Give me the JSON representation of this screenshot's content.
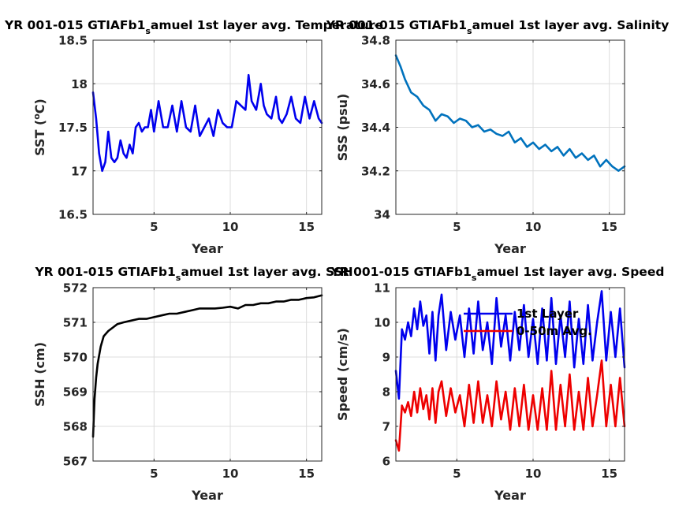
{
  "chart_data": [
    {
      "type": "line",
      "title": "YR 001-015 GTIAFb1_samuel 1st layer avg. Temperature",
      "title_parts": [
        "YR 001-015 GTIAFb1",
        "s",
        "amuel 1st layer avg. Temperature"
      ],
      "xlabel": "Year",
      "ylabel": "SST (",
      "ylabel_sup": "o",
      "ylabel_end": "C)",
      "xlim": [
        1,
        16
      ],
      "ylim": [
        16.5,
        18.5
      ],
      "xticks": [
        5,
        10,
        15
      ],
      "yticks": [
        16.5,
        17,
        17.5,
        18,
        18.5
      ],
      "ytick_labels": [
        "16.5",
        "17",
        "17.5",
        "18",
        "18.5"
      ],
      "grid": true,
      "series": [
        {
          "color": "#0000ee",
          "x": [
            1.0,
            1.2,
            1.4,
            1.6,
            1.8,
            2.0,
            2.2,
            2.4,
            2.6,
            2.8,
            3.0,
            3.2,
            3.4,
            3.6,
            3.8,
            4.0,
            4.2,
            4.4,
            4.6,
            4.8,
            5.0,
            5.3,
            5.6,
            5.9,
            6.2,
            6.5,
            6.8,
            7.1,
            7.4,
            7.7,
            8.0,
            8.3,
            8.6,
            8.9,
            9.2,
            9.5,
            9.8,
            10.1,
            10.4,
            10.7,
            11.0,
            11.2,
            11.4,
            11.7,
            12.0,
            12.2,
            12.4,
            12.7,
            13.0,
            13.2,
            13.4,
            13.7,
            14.0,
            14.3,
            14.6,
            14.9,
            15.2,
            15.5,
            15.8,
            16.0
          ],
          "values": [
            17.9,
            17.6,
            17.2,
            17.0,
            17.1,
            17.45,
            17.15,
            17.1,
            17.15,
            17.35,
            17.2,
            17.15,
            17.3,
            17.2,
            17.5,
            17.55,
            17.45,
            17.5,
            17.5,
            17.7,
            17.45,
            17.8,
            17.5,
            17.5,
            17.75,
            17.45,
            17.8,
            17.5,
            17.45,
            17.75,
            17.4,
            17.5,
            17.6,
            17.4,
            17.7,
            17.55,
            17.5,
            17.5,
            17.8,
            17.75,
            17.7,
            18.1,
            17.8,
            17.7,
            18.0,
            17.75,
            17.65,
            17.6,
            17.85,
            17.6,
            17.55,
            17.65,
            17.85,
            17.6,
            17.55,
            17.85,
            17.6,
            17.8,
            17.6,
            17.55
          ]
        }
      ]
    },
    {
      "type": "line",
      "title": "YR 001-015 GTIAFb1_samuel 1st layer avg. Salinity",
      "title_parts": [
        "YR 001-015 GTIAFb1",
        "s",
        "amuel 1st layer avg. Salinity"
      ],
      "xlabel": "Year",
      "ylabel": "SSS (psu)",
      "xlim": [
        1,
        16
      ],
      "ylim": [
        34,
        34.8
      ],
      "xticks": [
        5,
        10,
        15
      ],
      "yticks": [
        34,
        34.2,
        34.4,
        34.6,
        34.8
      ],
      "ytick_labels": [
        "34",
        "34.2",
        "34.4",
        "34.6",
        "34.8"
      ],
      "grid": true,
      "series": [
        {
          "color": "#0072bd",
          "x": [
            1.0,
            1.3,
            1.6,
            2.0,
            2.4,
            2.8,
            3.2,
            3.6,
            4.0,
            4.4,
            4.8,
            5.2,
            5.6,
            6.0,
            6.4,
            6.8,
            7.2,
            7.6,
            8.0,
            8.4,
            8.8,
            9.2,
            9.6,
            10.0,
            10.4,
            10.8,
            11.2,
            11.6,
            12.0,
            12.4,
            12.8,
            13.2,
            13.6,
            14.0,
            14.4,
            14.8,
            15.2,
            15.6,
            16.0
          ],
          "values": [
            34.73,
            34.68,
            34.62,
            34.56,
            34.54,
            34.5,
            34.48,
            34.43,
            34.46,
            34.45,
            34.42,
            34.44,
            34.43,
            34.4,
            34.41,
            34.38,
            34.39,
            34.37,
            34.36,
            34.38,
            34.33,
            34.35,
            34.31,
            34.33,
            34.3,
            34.32,
            34.29,
            34.31,
            34.27,
            34.3,
            34.26,
            34.28,
            34.25,
            34.27,
            34.22,
            34.25,
            34.22,
            34.2,
            34.22
          ]
        }
      ]
    },
    {
      "type": "line",
      "title": "YR 001-015 GTIAFb1_samuel 1st layer avg. SSH",
      "title_parts": [
        "YR 001-015 GTIAFb1",
        "s",
        "amuel 1st layer avg. SSH"
      ],
      "xlabel": "Year",
      "ylabel": "SSH (cm)",
      "xlim": [
        1,
        16
      ],
      "ylim": [
        567,
        572
      ],
      "xticks": [
        5,
        10,
        15
      ],
      "yticks": [
        567,
        568,
        569,
        570,
        571,
        572
      ],
      "ytick_labels": [
        "567",
        "568",
        "569",
        "570",
        "571",
        "572"
      ],
      "grid": true,
      "series": [
        {
          "color": "#000000",
          "x": [
            1.0,
            1.05,
            1.1,
            1.2,
            1.3,
            1.5,
            1.7,
            2.0,
            2.3,
            2.6,
            3.0,
            3.5,
            4.0,
            4.5,
            5.0,
            5.5,
            6.0,
            6.5,
            7.0,
            7.5,
            8.0,
            8.5,
            9.0,
            9.5,
            10.0,
            10.5,
            11.0,
            11.5,
            12.0,
            12.5,
            13.0,
            13.5,
            14.0,
            14.5,
            15.0,
            15.5,
            16.0
          ],
          "values": [
            567.7,
            568.3,
            568.8,
            569.4,
            569.8,
            570.3,
            570.6,
            570.75,
            570.85,
            570.95,
            571.0,
            571.05,
            571.1,
            571.1,
            571.15,
            571.2,
            571.25,
            571.25,
            571.3,
            571.35,
            571.4,
            571.4,
            571.4,
            571.42,
            571.45,
            571.4,
            571.5,
            571.5,
            571.55,
            571.55,
            571.6,
            571.6,
            571.65,
            571.65,
            571.7,
            571.72,
            571.78
          ]
        }
      ]
    },
    {
      "type": "line",
      "title": "YR 001-015 GTIAFb1_samuel 1st layer avg. Speed",
      "title_parts": [
        "YR 001-015 GTIAFb1",
        "s",
        "amuel 1st layer avg. Speed"
      ],
      "xlabel": "Year",
      "ylabel": "Speed (cm/s)",
      "xlim": [
        1,
        16
      ],
      "ylim": [
        6,
        11
      ],
      "xticks": [
        5,
        10,
        15
      ],
      "yticks": [
        6,
        7,
        8,
        9,
        10,
        11
      ],
      "ytick_labels": [
        "6",
        "7",
        "8",
        "9",
        "10",
        "11"
      ],
      "grid": true,
      "legend": "top-center",
      "series": [
        {
          "name": "1st Layer",
          "color": "#0000ee",
          "x": [
            1.0,
            1.2,
            1.4,
            1.6,
            1.8,
            2.0,
            2.2,
            2.4,
            2.6,
            2.8,
            3.0,
            3.2,
            3.4,
            3.6,
            3.8,
            4.0,
            4.3,
            4.6,
            4.9,
            5.2,
            5.5,
            5.8,
            6.1,
            6.4,
            6.7,
            7.0,
            7.3,
            7.6,
            7.9,
            8.2,
            8.5,
            8.8,
            9.1,
            9.4,
            9.7,
            10.0,
            10.3,
            10.6,
            10.9,
            11.2,
            11.5,
            11.8,
            12.1,
            12.4,
            12.7,
            13.0,
            13.3,
            13.6,
            13.9,
            14.2,
            14.5,
            14.8,
            15.1,
            15.4,
            15.7,
            16.0
          ],
          "values": [
            8.6,
            7.8,
            9.8,
            9.5,
            10.0,
            9.6,
            10.4,
            9.8,
            10.6,
            9.9,
            10.2,
            9.1,
            10.3,
            8.9,
            10.2,
            10.8,
            9.2,
            10.3,
            9.5,
            10.2,
            9.0,
            10.4,
            9.1,
            10.6,
            9.2,
            10.0,
            8.8,
            10.7,
            9.3,
            10.2,
            8.9,
            10.3,
            9.2,
            10.5,
            9.0,
            10.1,
            8.8,
            10.4,
            8.9,
            10.7,
            8.8,
            10.2,
            9.0,
            10.6,
            8.7,
            10.1,
            8.8,
            10.5,
            8.9,
            10.0,
            10.9,
            8.9,
            10.3,
            9.0,
            10.4,
            8.7
          ]
        },
        {
          "name": "0-50m Avg.",
          "color": "#ee0000",
          "x": [
            1.0,
            1.2,
            1.4,
            1.6,
            1.8,
            2.0,
            2.2,
            2.4,
            2.6,
            2.8,
            3.0,
            3.2,
            3.4,
            3.6,
            3.8,
            4.0,
            4.3,
            4.6,
            4.9,
            5.2,
            5.5,
            5.8,
            6.1,
            6.4,
            6.7,
            7.0,
            7.3,
            7.6,
            7.9,
            8.2,
            8.5,
            8.8,
            9.1,
            9.4,
            9.7,
            10.0,
            10.3,
            10.6,
            10.9,
            11.2,
            11.5,
            11.8,
            12.1,
            12.4,
            12.7,
            13.0,
            13.3,
            13.6,
            13.9,
            14.2,
            14.5,
            14.8,
            15.1,
            15.4,
            15.7,
            16.0
          ],
          "values": [
            6.6,
            6.3,
            7.6,
            7.4,
            7.7,
            7.3,
            8.0,
            7.4,
            8.1,
            7.5,
            7.9,
            7.2,
            8.1,
            7.1,
            8.0,
            8.3,
            7.3,
            8.1,
            7.4,
            7.9,
            7.0,
            8.2,
            7.1,
            8.3,
            7.1,
            7.9,
            7.0,
            8.3,
            7.2,
            8.0,
            6.9,
            8.1,
            7.0,
            8.2,
            6.9,
            7.9,
            6.9,
            8.1,
            6.9,
            8.6,
            6.9,
            8.2,
            7.0,
            8.5,
            6.9,
            8.0,
            6.9,
            8.4,
            7.0,
            7.9,
            8.9,
            7.0,
            8.2,
            7.0,
            8.4,
            7.0
          ]
        }
      ]
    }
  ]
}
